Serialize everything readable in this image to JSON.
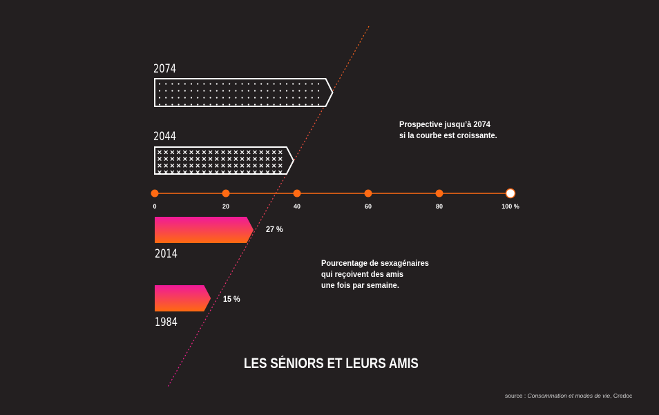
{
  "chart_data": {
    "type": "bar",
    "title": "LES SÉNIORS ET LEURS AMIS",
    "axis": {
      "ticks": [
        "0",
        "20",
        "40",
        "60",
        "80",
        "100 %"
      ],
      "tick_values": [
        0,
        20,
        40,
        60,
        80,
        100
      ],
      "range": [
        0,
        100
      ]
    },
    "observed": [
      {
        "year": "1984",
        "value": 15,
        "label": "15 %"
      },
      {
        "year": "2014",
        "value": 27,
        "label": "27 %"
      }
    ],
    "projected": [
      {
        "year": "2044",
        "value": 39,
        "pattern": "cross"
      },
      {
        "year": "2074",
        "value": 50,
        "pattern": "dot"
      }
    ],
    "note_projection": [
      "Prospective jusqu’à 2074",
      "si la courbe est croissante."
    ],
    "note_observed": [
      "Pourcentage de sexagénaires",
      "qui reçoivent des amis",
      "une fois par semaine."
    ],
    "source_prefix": "source : ",
    "source_title": "Consommation et modes de vie",
    "source_suffix": ", Credoc",
    "colors": {
      "background": "#231f20",
      "axis": "#ff6a13",
      "gradient_top": "#f0199a",
      "gradient_bottom": "#ff6a0f",
      "outline": "#ffffff"
    }
  }
}
